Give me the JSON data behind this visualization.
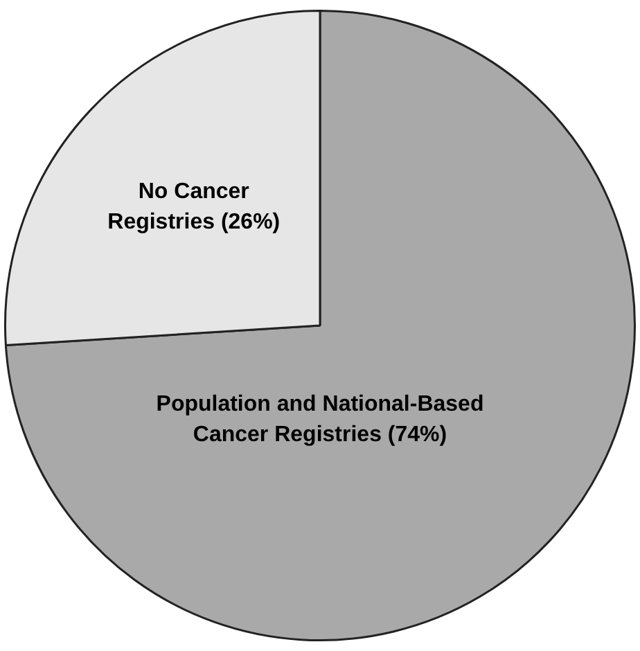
{
  "chart_data": {
    "type": "pie",
    "categories": [
      "Population and National-Based Cancer Registries",
      "No Cancer Registries"
    ],
    "values": [
      74,
      26
    ],
    "value_labels": [
      "(74%)",
      "(26%)"
    ],
    "colors": [
      "#a9a9a9",
      "#e6e6e6"
    ],
    "legend": false
  }
}
